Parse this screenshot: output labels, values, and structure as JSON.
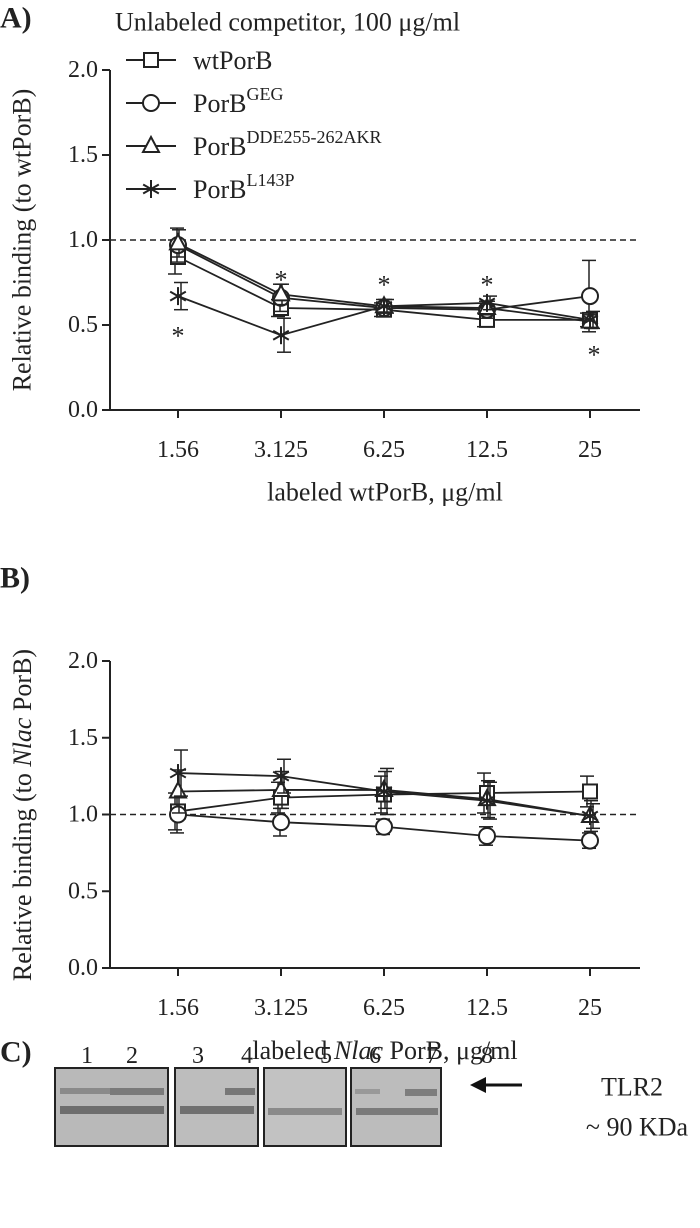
{
  "chart_data": [
    {
      "type": "line",
      "panel": "A)",
      "title": "Unlabeled competitor, 100  μg/ml",
      "ylabel": "Relative binding (to wtPorB)",
      "xlabel": "labeled wtPorB,  μg/ml",
      "categories": [
        "1.56",
        "3.125",
        "6.25",
        "12.5",
        "25"
      ],
      "ylim": [
        0,
        2
      ],
      "yticks": [
        {
          "value": 0,
          "label": "0.0"
        },
        {
          "value": 0.5,
          "label": "0.5"
        },
        {
          "value": 1,
          "label": "1.0"
        },
        {
          "value": 1.5,
          "label": "1.5"
        },
        {
          "value": 2,
          "label": "2.0"
        }
      ],
      "ref_line": 1,
      "series": [
        {
          "name": "wtPorB",
          "marker": "square",
          "color": "#222222",
          "values": [
            0.9,
            0.6,
            0.59,
            0.53,
            0.53
          ],
          "errors": [
            0.1,
            0.05,
            0.04,
            0.04,
            0.04
          ]
        },
        {
          "name": "PorB",
          "name_superscript": "GEG",
          "marker": "circle",
          "color": "#222222",
          "values": [
            0.97,
            0.66,
            0.6,
            0.59,
            0.67
          ],
          "errors": [
            0.1,
            0.08,
            0.05,
            0.05,
            0.21
          ]
        },
        {
          "name": "PorB",
          "name_superscript": "DDE255-262AKR",
          "marker": "triangle",
          "color": "#222222",
          "values": [
            0.98,
            0.68,
            0.61,
            0.6,
            0.52
          ],
          "errors": [
            0.08,
            0.06,
            0.04,
            0.04,
            0.04
          ]
        },
        {
          "name": "PorB",
          "name_superscript": "L143P",
          "marker": "star",
          "color": "#222222",
          "values": [
            0.67,
            0.44,
            0.61,
            0.63,
            0.53
          ],
          "errors": [
            0.08,
            0.1,
            0.04,
            0.04,
            0.05
          ]
        }
      ],
      "annotations": [
        {
          "text": "*",
          "category": "1.56",
          "y": 0.47
        },
        {
          "text": "*",
          "category": "3.125",
          "y": 0.8
        },
        {
          "text": "*",
          "category": "6.25",
          "y": 0.77
        },
        {
          "text": "*",
          "category": "12.5",
          "y": 0.77
        },
        {
          "text": "*",
          "category": "25",
          "y": 0.36
        }
      ]
    },
    {
      "type": "line",
      "panel": "B)",
      "ylabel": {
        "before": "Relative binding (to ",
        "italic": "Nlac",
        "after": " PorB)"
      },
      "xlabel": {
        "before": "labeled ",
        "italic": "Nlac",
        "after": " PorB, μg/ml"
      },
      "categories": [
        "1.56",
        "3.125",
        "6.25",
        "12.5",
        "25"
      ],
      "ylim": [
        0,
        2
      ],
      "yticks": [
        {
          "value": 0,
          "label": "0.0"
        },
        {
          "value": 0.5,
          "label": "0.5"
        },
        {
          "value": 1,
          "label": "1.0"
        },
        {
          "value": 1.5,
          "label": "1.5"
        },
        {
          "value": 2,
          "label": "2.0"
        }
      ],
      "ref_line": 1,
      "series": [
        {
          "marker": "square",
          "color": "#222222",
          "values": [
            1.02,
            1.11,
            1.13,
            1.14,
            1.15
          ],
          "errors": [
            0.12,
            0.1,
            0.12,
            0.13,
            0.1
          ]
        },
        {
          "marker": "circle",
          "color": "#222222",
          "values": [
            1.0,
            0.95,
            0.92,
            0.86,
            0.83
          ],
          "errors": [
            0.12,
            0.09,
            0.05,
            0.06,
            0.05
          ]
        },
        {
          "marker": "triangle",
          "color": "#222222",
          "values": [
            1.15,
            1.16,
            1.16,
            1.1,
            0.99
          ],
          "errors": [
            0.14,
            0.12,
            0.12,
            0.12,
            0.1
          ]
        },
        {
          "marker": "star",
          "color": "#222222",
          "values": [
            1.27,
            1.25,
            1.15,
            1.09,
            0.99
          ],
          "errors": [
            0.15,
            0.11,
            0.15,
            0.12,
            0.08
          ]
        }
      ]
    }
  ],
  "blot": {
    "panel": "C)",
    "lanes": [
      "1",
      "2",
      "3",
      "4",
      "5",
      "6",
      "7",
      "8"
    ],
    "target": "TLR2",
    "size": "~ 90 KDa"
  }
}
